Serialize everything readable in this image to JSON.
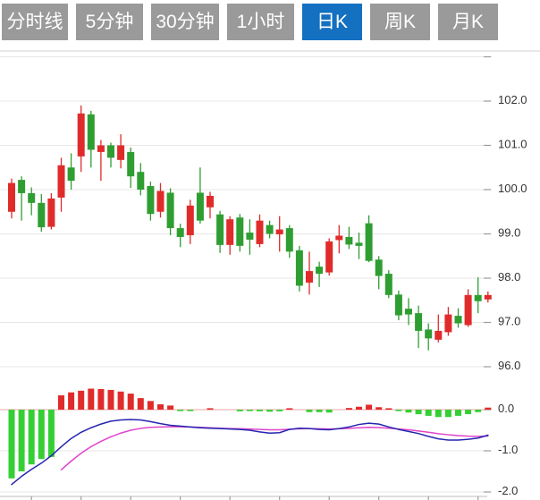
{
  "toolbar": {
    "tabs": [
      {
        "label": "分时线",
        "active": false
      },
      {
        "label": "5分钟",
        "active": false
      },
      {
        "label": "30分钟",
        "active": false
      },
      {
        "label": "1小时",
        "active": false
      },
      {
        "label": "日K",
        "active": true
      },
      {
        "label": "周K",
        "active": false
      },
      {
        "label": "月K",
        "active": false
      }
    ]
  },
  "chart_data": {
    "type": "candlestick",
    "title": "日K candlestick chart with MACD sub-panel",
    "legend_position": "none",
    "grid": "horizontal-only",
    "price_axis": {
      "side": "right",
      "gridline_values": [
        103,
        102,
        101,
        100,
        99,
        98,
        97,
        96
      ],
      "labels": [
        "",
        "102.0",
        "101.0",
        "100.0",
        "99.0",
        "98.0",
        "97.0",
        "96.0"
      ],
      "range": [
        95.8,
        103.2
      ]
    },
    "macd_axis": {
      "side": "right",
      "gridline_values": [
        0,
        -1,
        -2
      ],
      "labels": [
        "0.0",
        "-1.0",
        "-2.0"
      ],
      "range": [
        -2.15,
        0.65
      ]
    },
    "candles_format": "[open, high, low, close] — red body means close>open (CN up), green means close<open (CN down)",
    "candles": [
      [
        99.5,
        100.25,
        99.35,
        100.15
      ],
      [
        100.22,
        100.3,
        99.3,
        99.92
      ],
      [
        99.92,
        100.05,
        99.42,
        99.7
      ],
      [
        99.7,
        99.9,
        99.05,
        99.15
      ],
      [
        99.16,
        99.92,
        99.1,
        99.8
      ],
      [
        99.82,
        100.72,
        99.5,
        100.55
      ],
      [
        100.5,
        100.82,
        100.0,
        100.2
      ],
      [
        100.75,
        101.9,
        100.4,
        101.72
      ],
      [
        101.7,
        101.78,
        100.5,
        100.9
      ],
      [
        100.85,
        101.12,
        100.2,
        101.0
      ],
      [
        101.0,
        101.06,
        100.5,
        100.72
      ],
      [
        100.67,
        101.25,
        100.48,
        101.0
      ],
      [
        100.85,
        100.95,
        100.04,
        100.3
      ],
      [
        100.4,
        100.6,
        99.87,
        100.0
      ],
      [
        100.08,
        100.18,
        99.3,
        99.45
      ],
      [
        99.5,
        100.15,
        99.37,
        99.97
      ],
      [
        99.93,
        100.03,
        98.97,
        99.13
      ],
      [
        99.13,
        99.23,
        98.7,
        98.93
      ],
      [
        98.97,
        99.77,
        98.77,
        99.64
      ],
      [
        99.93,
        100.5,
        99.23,
        99.3
      ],
      [
        99.6,
        99.95,
        99.35,
        99.86
      ],
      [
        99.44,
        99.52,
        98.57,
        98.75
      ],
      [
        98.75,
        99.4,
        98.53,
        99.33
      ],
      [
        99.37,
        99.45,
        98.6,
        98.73
      ],
      [
        99.03,
        99.33,
        98.53,
        98.87
      ],
      [
        98.77,
        99.44,
        98.7,
        99.3
      ],
      [
        99.2,
        99.3,
        98.9,
        99.0
      ],
      [
        98.99,
        99.4,
        98.6,
        99.1
      ],
      [
        99.13,
        99.2,
        98.46,
        98.6
      ],
      [
        98.63,
        98.73,
        97.7,
        97.83
      ],
      [
        97.9,
        98.6,
        97.63,
        98.16
      ],
      [
        98.26,
        98.37,
        97.8,
        98.1
      ],
      [
        98.13,
        98.9,
        98.06,
        98.83
      ],
      [
        98.86,
        99.2,
        98.56,
        98.96
      ],
      [
        98.93,
        99.16,
        98.66,
        98.76
      ],
      [
        98.8,
        99.03,
        98.43,
        98.73
      ],
      [
        99.24,
        99.42,
        98.36,
        98.39
      ],
      [
        98.42,
        98.5,
        97.75,
        98.05
      ],
      [
        98.1,
        98.18,
        97.55,
        97.62
      ],
      [
        97.63,
        97.72,
        97.05,
        97.16
      ],
      [
        97.31,
        97.55,
        96.94,
        97.18
      ],
      [
        97.21,
        97.38,
        96.42,
        96.81
      ],
      [
        96.84,
        96.98,
        96.37,
        96.64
      ],
      [
        96.61,
        97.18,
        96.55,
        96.81
      ],
      [
        96.78,
        97.35,
        96.7,
        97.18
      ],
      [
        97.15,
        97.32,
        96.88,
        96.98
      ],
      [
        96.94,
        97.75,
        96.9,
        97.62
      ],
      [
        97.62,
        98.02,
        97.21,
        97.48
      ],
      [
        97.52,
        97.7,
        97.45,
        97.62
      ]
    ],
    "macd": {
      "hist": [
        -1.67,
        -1.5,
        -1.33,
        -1.2,
        -1.15,
        0.35,
        0.42,
        0.46,
        0.51,
        0.5,
        0.48,
        0.44,
        0.39,
        0.28,
        0.21,
        0.13,
        0.1,
        -0.02,
        -0.03,
        0,
        0.02,
        0,
        0,
        -0.04,
        -0.03,
        -0.04,
        -0.05,
        -0.04,
        0.02,
        0,
        -0.06,
        -0.06,
        -0.07,
        0,
        0.04,
        0.07,
        0.12,
        0.06,
        0.03,
        -0.03,
        -0.07,
        -0.11,
        -0.15,
        -0.18,
        -0.18,
        -0.15,
        -0.11,
        -0.06,
        0.05
      ],
      "dif": [
        -1.82,
        -1.62,
        -1.45,
        -1.3,
        -1.12,
        -0.9,
        -0.7,
        -0.55,
        -0.44,
        -0.35,
        -0.28,
        -0.25,
        -0.24,
        -0.25,
        -0.29,
        -0.34,
        -0.38,
        -0.4,
        -0.42,
        -0.44,
        -0.45,
        -0.46,
        -0.47,
        -0.48,
        -0.5,
        -0.54,
        -0.57,
        -0.56,
        -0.48,
        -0.45,
        -0.46,
        -0.48,
        -0.49,
        -0.46,
        -0.42,
        -0.36,
        -0.33,
        -0.35,
        -0.42,
        -0.48,
        -0.53,
        -0.58,
        -0.65,
        -0.71,
        -0.74,
        -0.74,
        -0.72,
        -0.69,
        -0.62
      ],
      "dea": [
        null,
        null,
        null,
        null,
        null,
        -1.46,
        -1.25,
        -1.06,
        -0.9,
        -0.77,
        -0.66,
        -0.57,
        -0.5,
        -0.455,
        -0.43,
        -0.42,
        -0.415,
        -0.415,
        -0.42,
        -0.43,
        -0.44,
        -0.45,
        -0.46,
        -0.465,
        -0.47,
        -0.48,
        -0.49,
        -0.49,
        -0.475,
        -0.465,
        -0.46,
        -0.465,
        -0.47,
        -0.465,
        -0.455,
        -0.44,
        -0.43,
        -0.435,
        -0.45,
        -0.47,
        -0.49,
        -0.52,
        -0.55,
        -0.585,
        -0.61,
        -0.63,
        -0.645,
        -0.65,
        -0.64
      ]
    }
  },
  "colors": {
    "up": "#e02b2b",
    "down": "#2f9e32",
    "macd_up": "#e02b2b",
    "macd_down": "#35cf35",
    "dif_line": "#2525b0",
    "dea_line": "#e044cc",
    "grid": "#e7e7e7",
    "zero_line": "#eda6a6",
    "tick": "#9b9b9b",
    "axis_line": "#c9c9c9",
    "border": "#d9d9d9",
    "axis_text": "#333333",
    "tab_bg": "#9a9a9a",
    "tab_active_bg": "#1470c0",
    "tab_text": "#ffffff",
    "background": "#ffffff"
  }
}
